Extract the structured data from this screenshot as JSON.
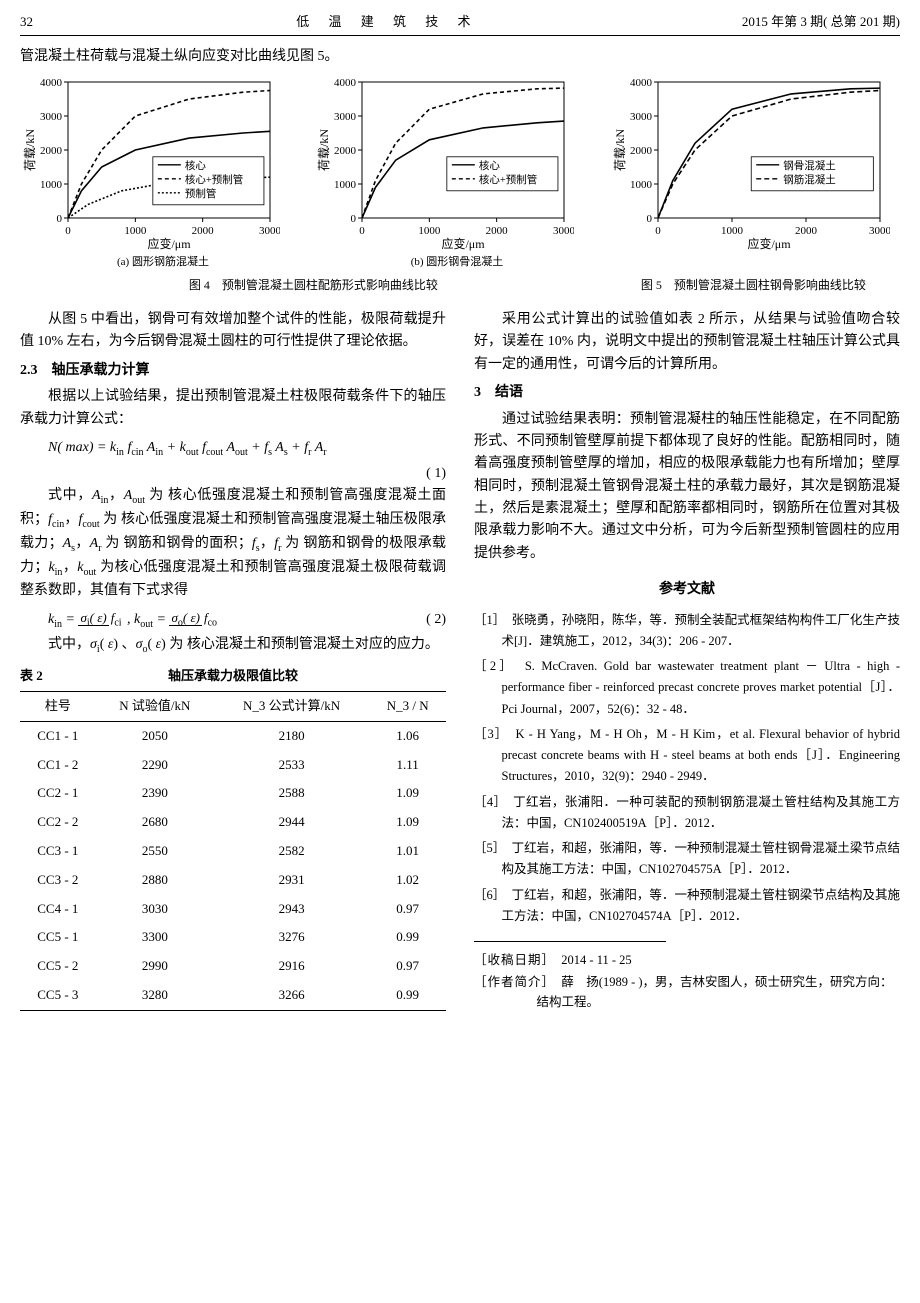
{
  "header": {
    "page": "32",
    "journal": "低 温 建 筑 技 术",
    "issue": "2015 年第 3 期( 总第 201 期)"
  },
  "intro_line": "管混凝土柱荷载与混凝土纵向应变对比曲线见图 5。",
  "fig4": {
    "caption": "图 4　预制管混凝土圆柱配筋形式影响曲线比较",
    "sub_a": "(a) 圆形钢筋混凝土",
    "sub_b": "(b) 圆形钢骨混凝土",
    "xlabel": "应变/μm",
    "ylabel": "荷载/kN",
    "legend_a": [
      "核心",
      "核心+预制管",
      "预制管"
    ],
    "legend_b": [
      "核心",
      "核心+预制管"
    ],
    "xlim": [
      0,
      3000
    ],
    "ylim": [
      0,
      4000
    ],
    "xticks": [
      0,
      1000,
      2000,
      3000
    ],
    "yticks": [
      0,
      1000,
      2000,
      3000,
      4000
    ],
    "line_color": "#000000",
    "bg": "#ffffff",
    "a_series": {
      "core": [
        [
          0,
          0
        ],
        [
          200,
          800
        ],
        [
          500,
          1500
        ],
        [
          1000,
          2000
        ],
        [
          1800,
          2350
        ],
        [
          2600,
          2500
        ],
        [
          3000,
          2550
        ]
      ],
      "coretube": [
        [
          0,
          0
        ],
        [
          200,
          1000
        ],
        [
          500,
          2000
        ],
        [
          1000,
          3000
        ],
        [
          1800,
          3500
        ],
        [
          2600,
          3700
        ],
        [
          3000,
          3750
        ]
      ],
      "tube": [
        [
          0,
          0
        ],
        [
          300,
          400
        ],
        [
          800,
          800
        ],
        [
          1500,
          1050
        ],
        [
          2200,
          1150
        ],
        [
          3000,
          1200
        ]
      ]
    },
    "b_series": {
      "core": [
        [
          0,
          0
        ],
        [
          200,
          900
        ],
        [
          500,
          1700
        ],
        [
          1000,
          2300
        ],
        [
          1800,
          2650
        ],
        [
          2600,
          2800
        ],
        [
          3000,
          2850
        ]
      ],
      "coretube": [
        [
          0,
          0
        ],
        [
          200,
          1100
        ],
        [
          500,
          2200
        ],
        [
          1000,
          3200
        ],
        [
          1800,
          3650
        ],
        [
          2600,
          3800
        ],
        [
          3000,
          3820
        ]
      ]
    }
  },
  "fig5": {
    "caption": "图 5　预制管混凝土圆柱钢骨影响曲线比较",
    "xlabel": "应变/μm",
    "ylabel": "荷载/kN",
    "legend": [
      "钢骨混凝土",
      "钢筋混凝土"
    ],
    "xlim": [
      0,
      3000
    ],
    "ylim": [
      0,
      4000
    ],
    "xticks": [
      0,
      1000,
      2000,
      3000
    ],
    "yticks": [
      0,
      1000,
      2000,
      3000,
      4000
    ],
    "line_color": "#000000",
    "bg": "#ffffff",
    "series": {
      "steelbone": [
        [
          0,
          0
        ],
        [
          200,
          1100
        ],
        [
          500,
          2200
        ],
        [
          1000,
          3200
        ],
        [
          1800,
          3650
        ],
        [
          2600,
          3800
        ],
        [
          3000,
          3820
        ]
      ],
      "steelbar": [
        [
          0,
          0
        ],
        [
          200,
          1000
        ],
        [
          500,
          2000
        ],
        [
          1000,
          3000
        ],
        [
          1800,
          3500
        ],
        [
          2600,
          3700
        ],
        [
          3000,
          3750
        ]
      ]
    }
  },
  "left": {
    "p1": "从图 5 中看出，钢骨可有效增加整个试件的性能，极限荷载提升值 10% 左右，为今后钢骨混凝土圆柱的可行性提供了理论依据。",
    "h23": "2.3　轴压承载力计算",
    "p2": "根据以上试验结果，提出预制管混凝土柱极限荷载条件下的轴压承载力计算公式：",
    "eq1_text": "N( max) = k_in f_cin A_in + k_out f_cout A_out + f_s A_s + f_r A_r",
    "eq1_num": "( 1)",
    "p3a": "式中，A_in，A_out 为 核心低强度混凝土和预制管高强度混凝土面积；f_cin，f_cout 为 核心低强度混凝土和预制管高强度混凝土轴压极限承载力；A_s，A_r 为 钢筋和钢骨的面积；f_s，f_r 为 钢筋和钢骨的极限承载力；k_in，k_out 为核心低强度混凝土和预制管高强度混凝土极限荷载调整系数即，其值有下式求得",
    "eq2_num": "( 2)",
    "p4": "式中，σ_i(ε)、σ_o(ε) 为 核心混凝土和预制管混凝土对应的应力。"
  },
  "table2": {
    "label": "表 2",
    "title": "轴压承载力极限值比较",
    "headers": [
      "柱号",
      "N 试验值/kN",
      "N_3 公式计算/kN",
      "N_3 / N"
    ],
    "rows": [
      [
        "CC1 - 1",
        "2050",
        "2180",
        "1.06"
      ],
      [
        "CC1 - 2",
        "2290",
        "2533",
        "1.11"
      ],
      [
        "CC2 - 1",
        "2390",
        "2588",
        "1.09"
      ],
      [
        "CC2 - 2",
        "2680",
        "2944",
        "1.09"
      ],
      [
        "CC3 - 1",
        "2550",
        "2582",
        "1.01"
      ],
      [
        "CC3 - 2",
        "2880",
        "2931",
        "1.02"
      ],
      [
        "CC4 - 1",
        "3030",
        "2943",
        "0.97"
      ],
      [
        "CC5 - 1",
        "3300",
        "3276",
        "0.99"
      ],
      [
        "CC5 - 2",
        "2990",
        "2916",
        "0.97"
      ],
      [
        "CC5 - 3",
        "3280",
        "3266",
        "0.99"
      ]
    ]
  },
  "right": {
    "p1": "采用公式计算出的试验值如表 2 所示，从结果与试验值吻合较好，误差在 10% 内，说明文中提出的预制管混凝土柱轴压计算公式具有一定的通用性，可谓今后的计算所用。",
    "h3": "3　结语",
    "p2": "通过试验结果表明：预制管混凝柱的轴压性能稳定，在不同配筋形式、不同预制管壁厚前提下都体现了良好的性能。配筋相同时，随着高强度预制管壁厚的增加，相应的极限承载能力也有所增加；壁厚相同时，预制混凝土管钢骨混凝土柱的承载力最好，其次是钢筋混凝土，然后是素混凝土；壁厚和配筋率都相同时，钢筋所在位置对其极限承载力影响不大。通过文中分析，可为今后新型预制管圆柱的应用提供参考。"
  },
  "refs": {
    "head": "参考文献",
    "items": [
      "［1］　张晓勇，孙晓阳，陈华，等．预制全装配式框架结构构件工厂化生产技术[J]．建筑施工，2012，34(3)：206 - 207．",
      "［2］　S. McCraven. Gold bar wastewater treatment plant － Ultra - high - performance fiber - reinforced precast concrete proves market potential［J］．Pci Journal，2007，52(6)：32 - 48．",
      "［3］　K - H Yang，M - H Oh，M - H Kim，et al. Flexural behavior of hybrid precast concrete beams with H - steel beams at both ends［J］．Engineering Structures，2010，32(9)：2940 - 2949．",
      "［4］　丁红岩，张浦阳．一种可装配的预制钢筋混凝土管柱结构及其施工方法：中国，CN102400519A［P］．2012．",
      "［5］　丁红岩，和超，张浦阳，等．一种预制混凝土管柱钢骨混凝土梁节点结构及其施工方法：中国，CN102704575A［P］．2012．",
      "［6］　丁红岩，和超，张浦阳，等．一种预制混凝土管柱钢梁节点结构及其施工方法：中国，CN102704574A［P］．2012．"
    ]
  },
  "footer": {
    "recv_label": "［收稿日期］",
    "recv": "2014 - 11 - 25",
    "author_label": "［作者简介］",
    "author": "薛　扬(1989 - )，男，吉林安图人，硕士研究生，研究方向：结构工程。"
  }
}
